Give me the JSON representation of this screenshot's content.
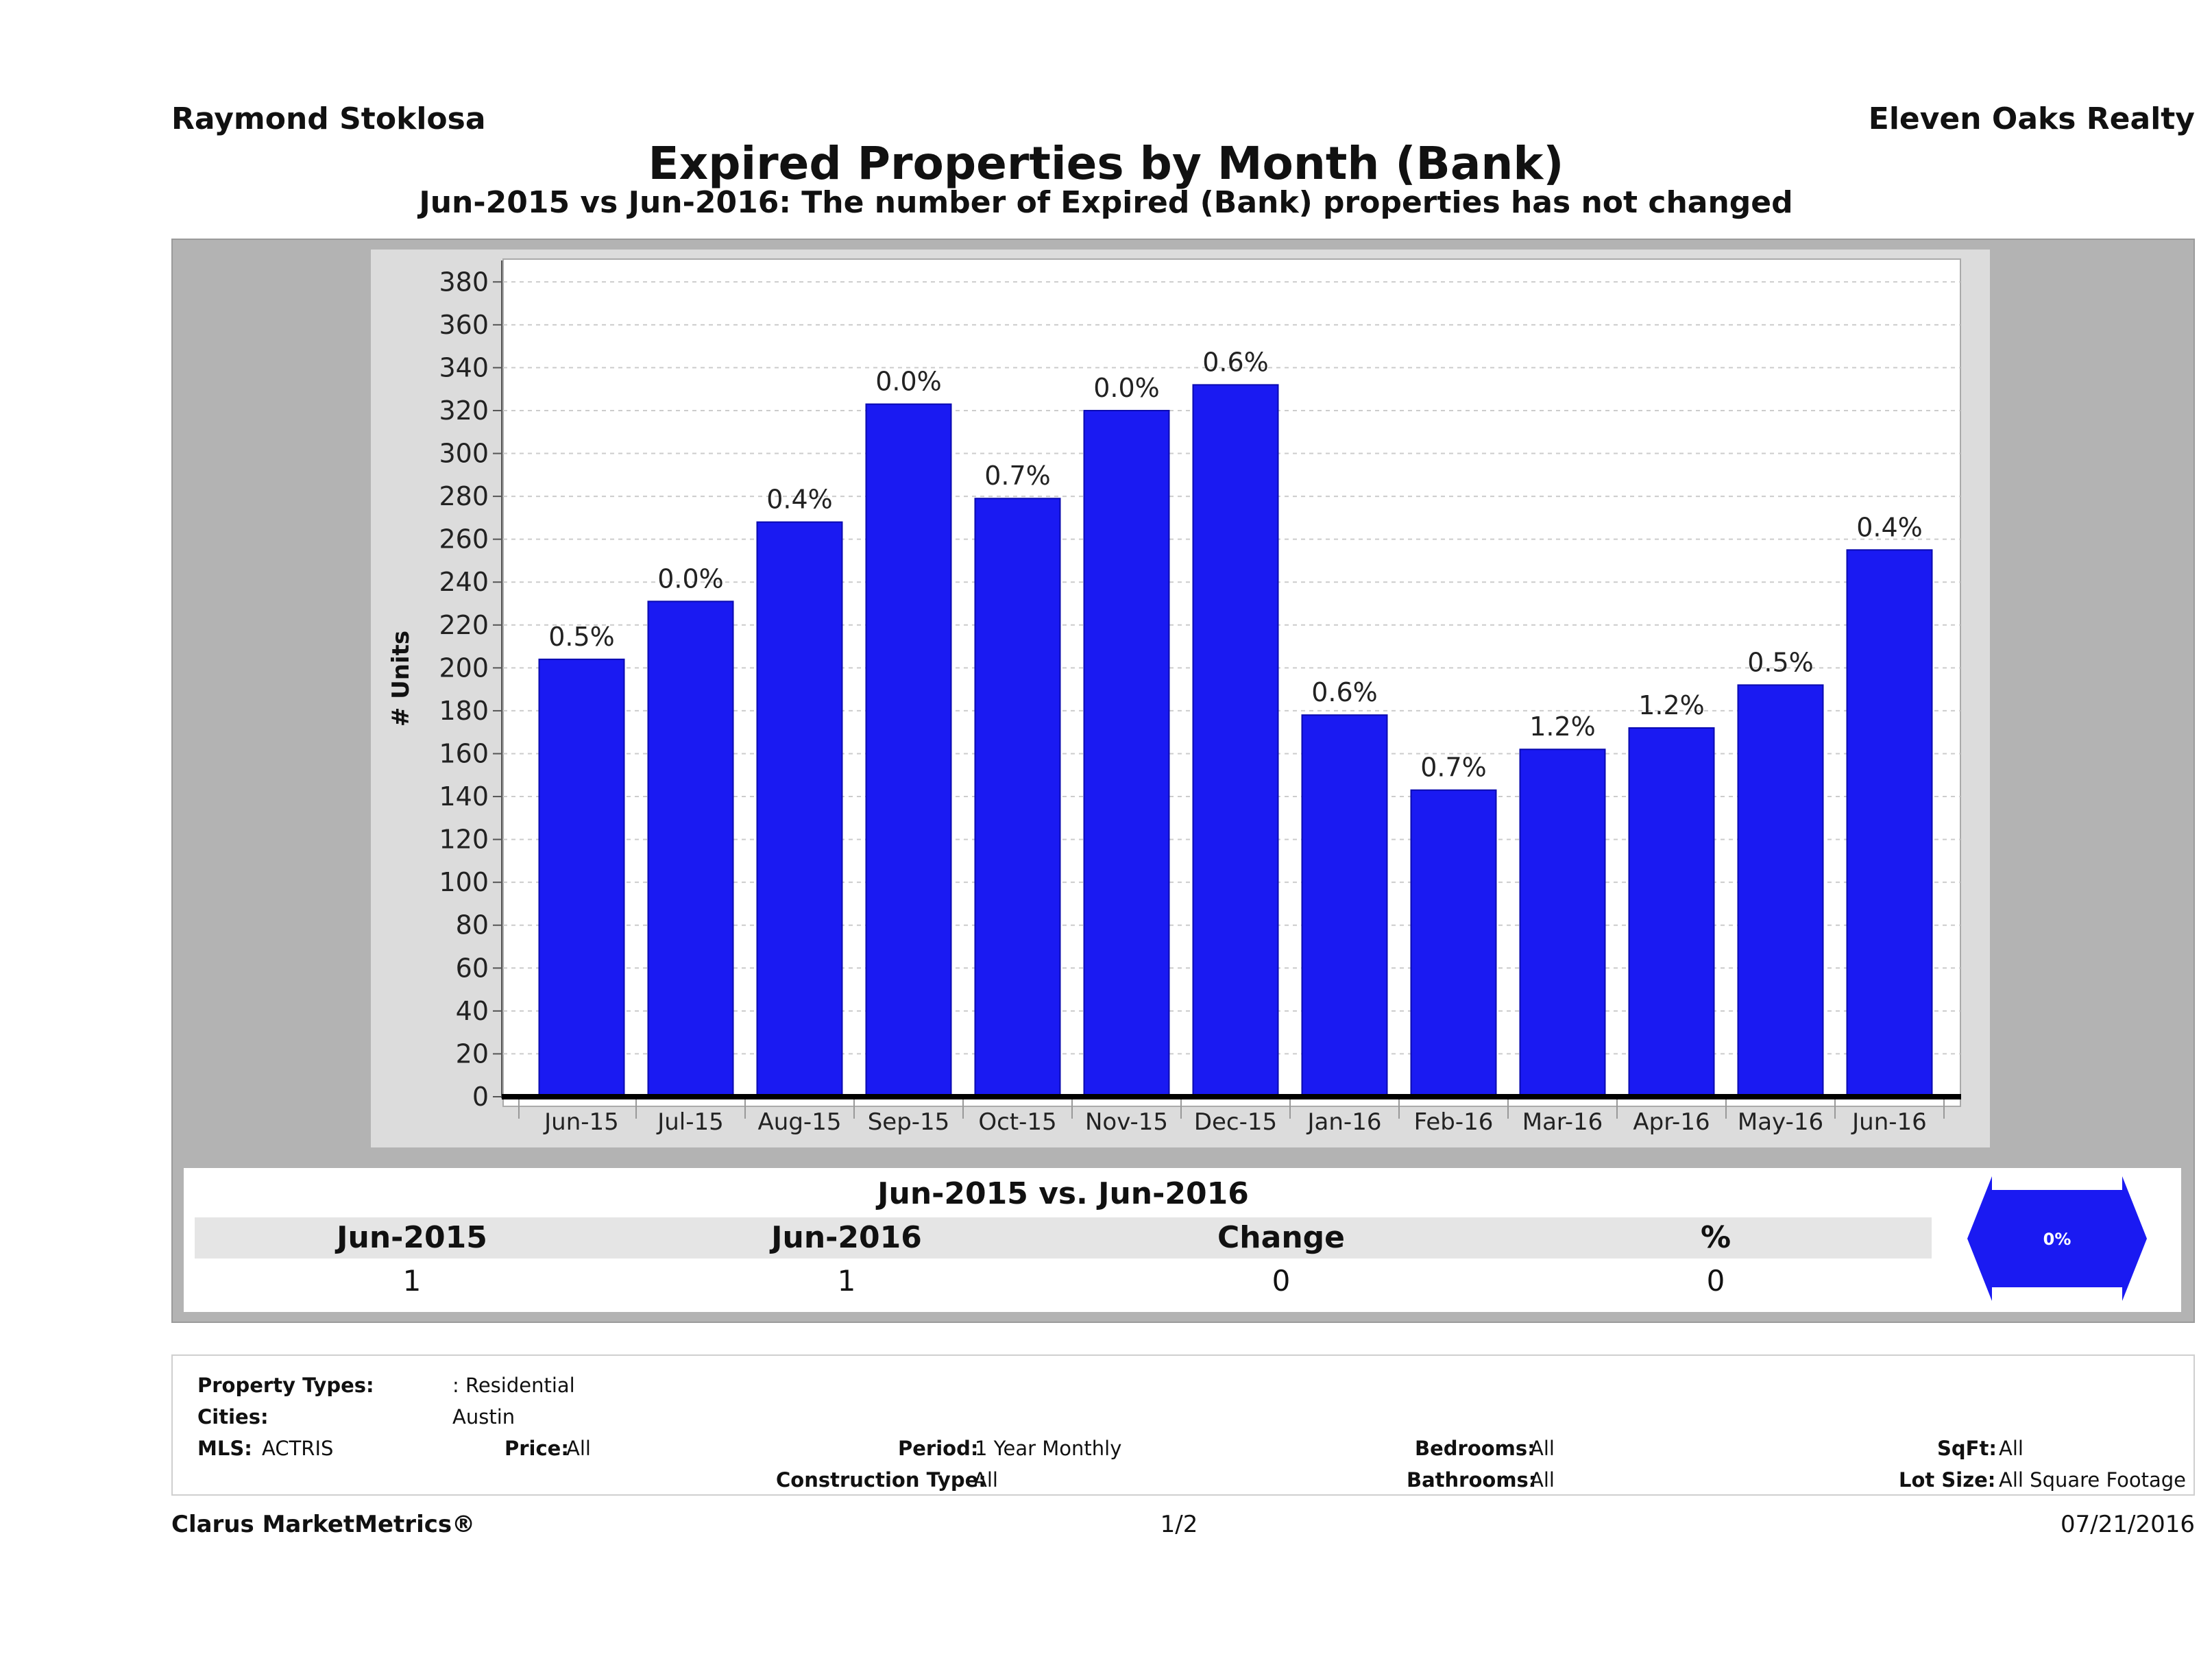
{
  "header": {
    "agent_name": "Raymond Stoklosa",
    "company": "Eleven Oaks Realty"
  },
  "chart_data": {
    "type": "bar",
    "title": "Expired Properties by Month (Bank)",
    "subtitle": "Jun-2015 vs Jun-2016: The number of Expired (Bank)  properties has not changed",
    "ylabel": "# Units",
    "xlabel": "",
    "ylim": [
      0,
      390
    ],
    "yticks": [
      0,
      20,
      40,
      60,
      80,
      100,
      120,
      140,
      160,
      180,
      200,
      220,
      240,
      260,
      280,
      300,
      320,
      340,
      360,
      380
    ],
    "grid": true,
    "bar_color": "#1a1af2",
    "categories": [
      "Jun-15",
      "Jul-15",
      "Aug-15",
      "Sep-15",
      "Oct-15",
      "Nov-15",
      "Dec-15",
      "Jan-16",
      "Feb-16",
      "Mar-16",
      "Apr-16",
      "May-16",
      "Jun-16"
    ],
    "values": [
      204,
      231,
      268,
      323,
      279,
      320,
      332,
      178,
      143,
      162,
      172,
      192,
      255
    ],
    "data_labels": [
      "0.5%",
      "0.0%",
      "0.4%",
      "0.0%",
      "0.7%",
      "0.0%",
      "0.6%",
      "0.6%",
      "0.7%",
      "1.2%",
      "1.2%",
      "0.5%",
      "0.4%"
    ]
  },
  "summary": {
    "heading": "Jun-2015 vs. Jun-2016",
    "columns": [
      "Jun-2015",
      "Jun-2016",
      "Change",
      "%"
    ],
    "values": [
      "1",
      "1",
      "0",
      "0"
    ],
    "indicator_label": "0%",
    "indicator_color": "#1a1af2"
  },
  "criteria": {
    "property_types_label": "Property Types:",
    "property_types_value": ": Residential",
    "cities_label": "Cities:",
    "cities_value": "Austin",
    "mls_label": "MLS:",
    "mls_value": "ACTRIS",
    "price_label": "Price:",
    "price_value": "All",
    "period_label": "Period:",
    "period_value": "1 Year Monthly",
    "construction_label": "Construction Type:",
    "construction_value": "All",
    "bedrooms_label": "Bedrooms:",
    "bedrooms_value": "All",
    "bathrooms_label": "Bathrooms:",
    "bathrooms_value": "All",
    "sqft_label": "SqFt:",
    "sqft_value": "All",
    "lot_label": "Lot Size:",
    "lot_value": "All Square Footage"
  },
  "footer": {
    "brand": "Clarus MarketMetrics®",
    "page": "1/2",
    "date": "07/21/2016"
  }
}
